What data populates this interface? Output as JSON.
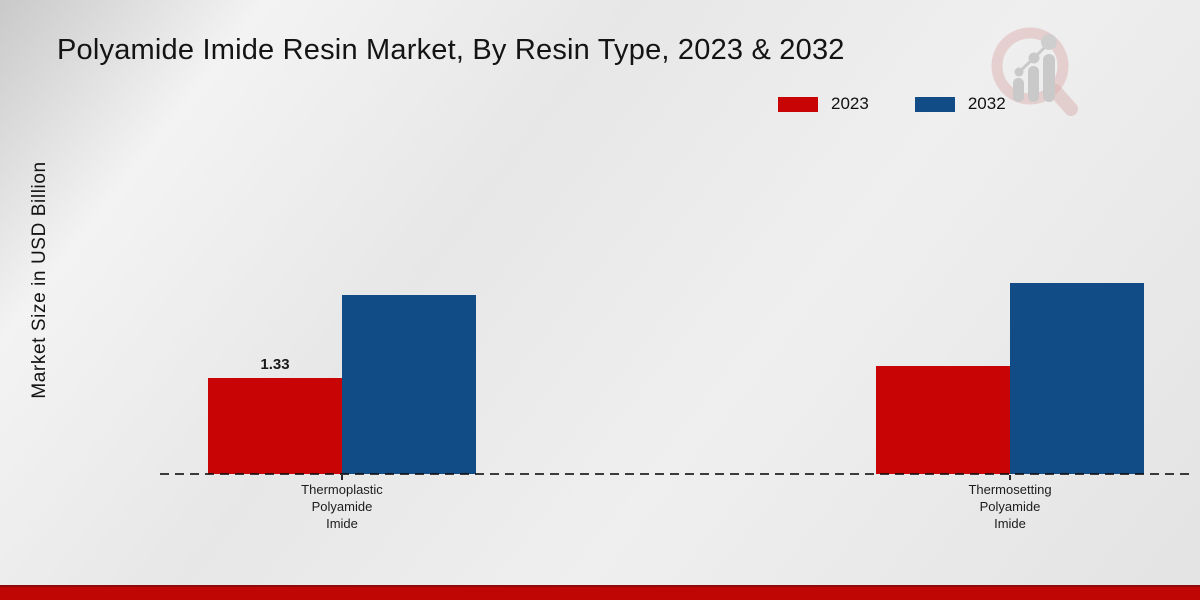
{
  "chart_data": {
    "type": "bar",
    "title": "Polyamide Imide Resin Market, By Resin Type, 2023 & 2032",
    "ylabel": "Market Size in USD Billion",
    "xlabel": "",
    "categories": [
      "Thermoplastic\nPolyamide\nImide",
      "Thermosetting\nPolyamide\nImide"
    ],
    "series": [
      {
        "name": "2023",
        "color": "#c90404",
        "values": [
          1.33,
          1.49
        ]
      },
      {
        "name": "2032",
        "color": "#114c87",
        "values": [
          2.48,
          2.65
        ]
      }
    ],
    "annotations": [
      {
        "series": "2023",
        "category_index": 0,
        "text": "1.33"
      }
    ],
    "legend_position": "top-right",
    "baseline_style": "dashed",
    "y_axis_tick_labels_visible": false,
    "grid": false
  },
  "branding": {
    "logo_icon": "magnifier-bar-chart-logo",
    "footer_bar_color": "#c00505"
  }
}
